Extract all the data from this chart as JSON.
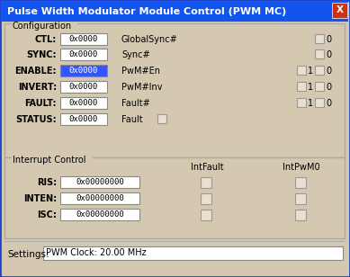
{
  "title": "Pulse Width Modulator Module Control (PWM MC)",
  "title_bg": "#1155ee",
  "title_fg": "#ffffff",
  "bg_color": "#d4c8b0",
  "body_bg": "#d4c8b0",
  "close_btn_bg": "#cc3311",
  "close_btn_border": "#ee4422",
  "config_label": "Configuration",
  "interrupt_label": "Interrupt Control",
  "outer_border": "#2244cc",
  "group_border": "#aaaaaa",
  "config_rows": [
    {
      "label": "CTL:",
      "value": "0x0000",
      "mid": "GlobalSync#",
      "mode": "single_check",
      "highlight": false
    },
    {
      "label": "SYNC:",
      "value": "0x0000",
      "mid": "Sync#",
      "mode": "single_check",
      "highlight": false
    },
    {
      "label": "ENABLE:",
      "value": "0x0000",
      "mid": "PwM#En",
      "mode": "double_check",
      "highlight": true
    },
    {
      "label": "INVERT:",
      "value": "0x0000",
      "mid": "PwM#Inv",
      "mode": "double_check",
      "highlight": false
    },
    {
      "label": "FAULT:",
      "value": "0x0000",
      "mid": "Fault#",
      "mode": "double_check",
      "highlight": false
    },
    {
      "label": "STATUS:",
      "value": "0x0000",
      "mid": "Fault",
      "mode": "fault_check",
      "highlight": false
    }
  ],
  "interrupt_rows": [
    {
      "label": "RIS:",
      "value": "0x00000000"
    },
    {
      "label": "INTEN:",
      "value": "0x00000000"
    },
    {
      "label": "ISC:",
      "value": "0x00000000"
    }
  ],
  "int_col1": "IntFault",
  "int_col2": "IntPwM0",
  "settings_label": "Settings:",
  "settings_value": "PWM Clock: 20.00 MHz"
}
